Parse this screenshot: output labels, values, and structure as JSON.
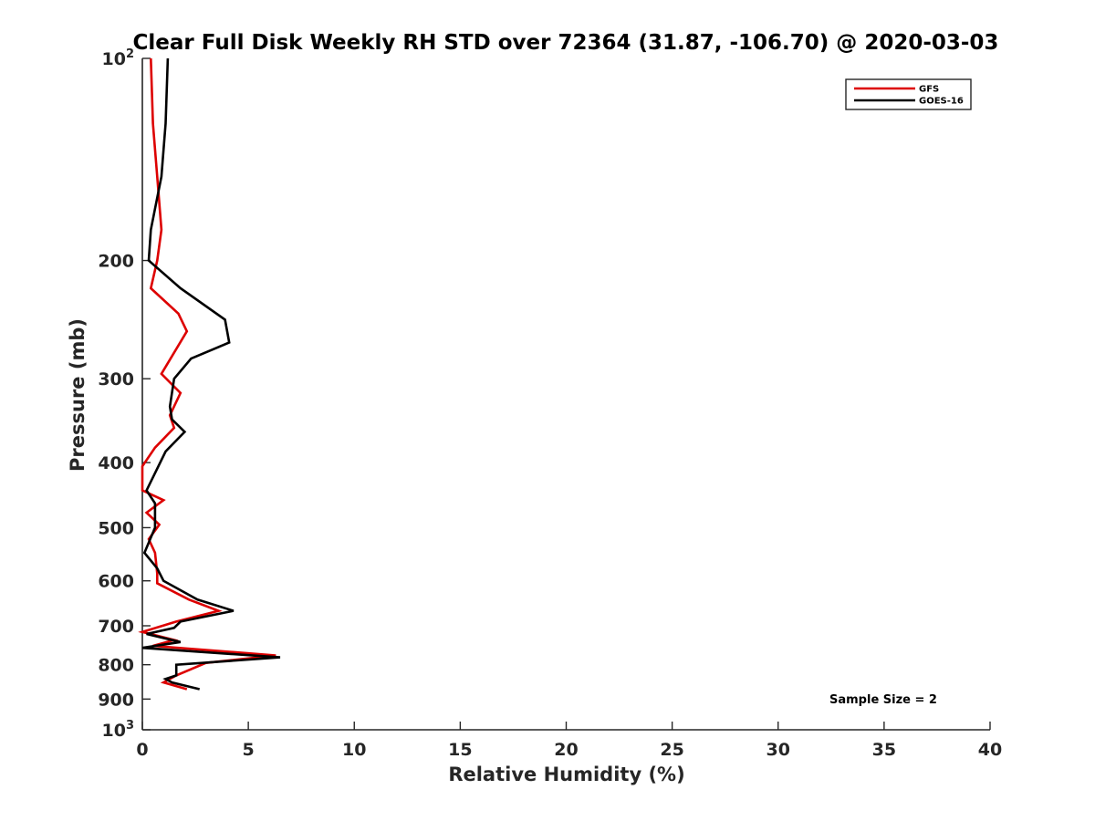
{
  "chart_data": {
    "type": "line",
    "title": "Clear Full Disk Weekly RH STD over 72364 (31.87, -106.70) @ 2020-03-03",
    "xlabel": "Relative Humidity (%)",
    "ylabel": "Pressure (mb)",
    "xlim": [
      0,
      40
    ],
    "ylim": [
      100,
      1000
    ],
    "yscale": "log",
    "y_reversed": true,
    "grid": false,
    "x_ticks": [
      "0",
      "5",
      "10",
      "15",
      "20",
      "25",
      "30",
      "35",
      "40"
    ],
    "y_ticks": [
      {
        "value": 100,
        "base": "10",
        "exp": "2"
      },
      {
        "value": 200,
        "label": "200"
      },
      {
        "value": 300,
        "label": "300"
      },
      {
        "value": 400,
        "label": "400"
      },
      {
        "value": 500,
        "label": "500"
      },
      {
        "value": 600,
        "label": "600"
      },
      {
        "value": 700,
        "label": "700"
      },
      {
        "value": 800,
        "label": "800"
      },
      {
        "value": 900,
        "label": "900"
      },
      {
        "value": 1000,
        "base": "10",
        "exp": "3"
      }
    ],
    "legend_position": "top-right",
    "annotation": "Sample Size = 2",
    "series": [
      {
        "name": "GFS",
        "color": "#dd0000",
        "points": [
          [
            0.4,
            100
          ],
          [
            0.5,
            125
          ],
          [
            0.7,
            150
          ],
          [
            0.9,
            180
          ],
          [
            0.7,
            200
          ],
          [
            0.4,
            220
          ],
          [
            1.7,
            240
          ],
          [
            2.1,
            255
          ],
          [
            0.9,
            295
          ],
          [
            1.8,
            315
          ],
          [
            1.3,
            340
          ],
          [
            1.5,
            355
          ],
          [
            0.6,
            380
          ],
          [
            0.0,
            405
          ],
          [
            0.0,
            440
          ],
          [
            1.0,
            455
          ],
          [
            0.2,
            475
          ],
          [
            0.8,
            495
          ],
          [
            0.3,
            520
          ],
          [
            0.6,
            545
          ],
          [
            0.7,
            585
          ],
          [
            0.7,
            605
          ],
          [
            2.2,
            640
          ],
          [
            3.6,
            665
          ],
          [
            1.6,
            690
          ],
          [
            0.0,
            715
          ],
          [
            1.5,
            735
          ],
          [
            0.5,
            750
          ],
          [
            6.3,
            775
          ],
          [
            3.0,
            795
          ],
          [
            1.6,
            830
          ],
          [
            1.0,
            850
          ],
          [
            2.1,
            870
          ]
        ]
      },
      {
        "name": "GOES-16",
        "color": "#000000",
        "points": [
          [
            1.2,
            100
          ],
          [
            1.1,
            125
          ],
          [
            0.9,
            150
          ],
          [
            0.4,
            180
          ],
          [
            0.3,
            200
          ],
          [
            1.8,
            220
          ],
          [
            3.9,
            245
          ],
          [
            4.1,
            265
          ],
          [
            2.3,
            280
          ],
          [
            1.5,
            300
          ],
          [
            1.3,
            330
          ],
          [
            1.4,
            345
          ],
          [
            2.0,
            360
          ],
          [
            1.1,
            385
          ],
          [
            0.2,
            440
          ],
          [
            0.6,
            460
          ],
          [
            0.6,
            500
          ],
          [
            0.1,
            545
          ],
          [
            0.7,
            575
          ],
          [
            1.0,
            600
          ],
          [
            2.6,
            640
          ],
          [
            4.3,
            665
          ],
          [
            1.8,
            690
          ],
          [
            1.5,
            705
          ],
          [
            0.2,
            720
          ],
          [
            1.8,
            740
          ],
          [
            0.0,
            755
          ],
          [
            6.5,
            780
          ],
          [
            1.6,
            800
          ],
          [
            1.6,
            830
          ],
          [
            1.1,
            840
          ],
          [
            1.4,
            850
          ],
          [
            2.7,
            870
          ]
        ]
      }
    ]
  }
}
